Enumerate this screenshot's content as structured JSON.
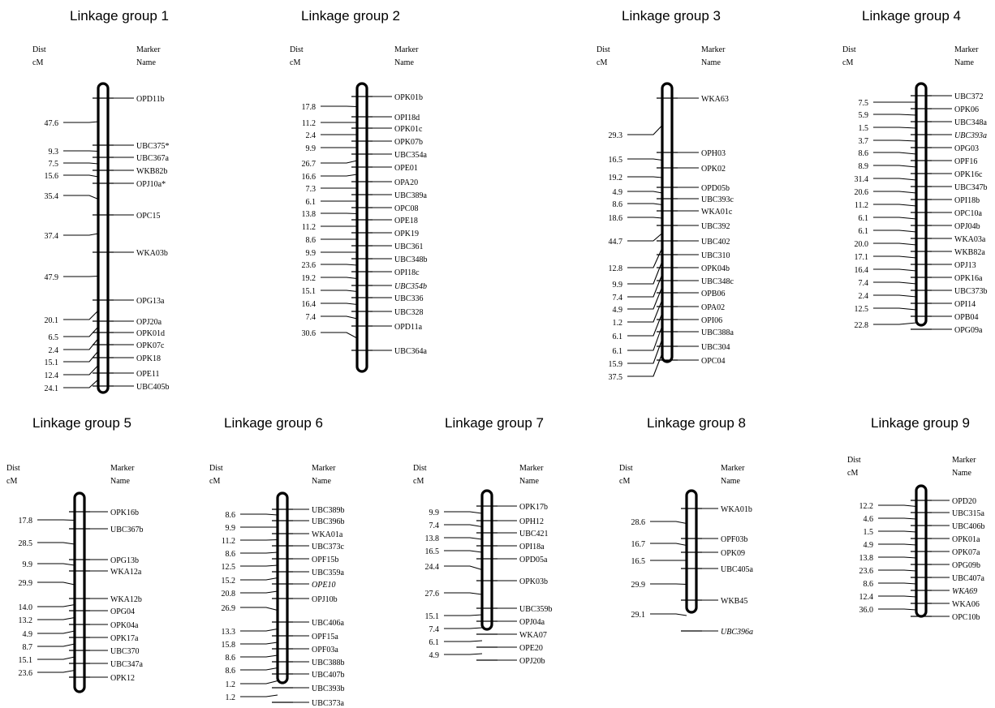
{
  "colors": {
    "ink": "#000000",
    "background": "#ffffff"
  },
  "header": {
    "dist": "Dist",
    "dist_unit": "cM",
    "marker": "Marker",
    "marker_unit": "Name"
  },
  "groups": [
    {
      "title": "Linkage group 1",
      "distances": [
        "47.6",
        "9.3",
        "7.5",
        "15.6",
        "35.4",
        "37.4",
        "47.9",
        "20.1",
        "6.5",
        "2.4",
        "15.1",
        "12.4",
        "24.1"
      ],
      "markers": [
        {
          "name": "OPD11b"
        },
        {
          "name": "UBC375*"
        },
        {
          "name": "UBC367a"
        },
        {
          "name": "WKB82b"
        },
        {
          "name": "OPJ10a*"
        },
        {
          "name": "OPC15"
        },
        {
          "name": "WKA03b"
        },
        {
          "name": "OPG13a"
        },
        {
          "name": "OPJ20a"
        },
        {
          "name": "OPK01d"
        },
        {
          "name": "OPK07c"
        },
        {
          "name": "OPK18"
        },
        {
          "name": "OPE11"
        },
        {
          "name": "UBC405b"
        }
      ]
    },
    {
      "title": "Linkage group 2",
      "distances": [
        "17.8",
        "11.2",
        "2.4",
        "9.9",
        "26.7",
        "16.6",
        "7.3",
        "6.1",
        "13.8",
        "11.2",
        "8.6",
        "9.9",
        "23.6",
        "19.2",
        "15.1",
        "16.4",
        "7.4",
        "30.6"
      ],
      "markers": [
        {
          "name": "OPK01b"
        },
        {
          "name": "OPI18d"
        },
        {
          "name": "OPK01c"
        },
        {
          "name": "OPK07b"
        },
        {
          "name": "UBC354a"
        },
        {
          "name": "OPE01"
        },
        {
          "name": "OPA20"
        },
        {
          "name": "UBC389a"
        },
        {
          "name": "OPC08"
        },
        {
          "name": "OPE18"
        },
        {
          "name": "OPK19"
        },
        {
          "name": "UBC361"
        },
        {
          "name": "UBC348b"
        },
        {
          "name": "OPI18c"
        },
        {
          "name": "UBC354b",
          "italic": true
        },
        {
          "name": "UBC336"
        },
        {
          "name": "UBC328"
        },
        {
          "name": "OPD11a"
        },
        {
          "name": "UBC364a"
        }
      ]
    },
    {
      "title": "Linkage group 3",
      "distances": [
        "29.3",
        "16.5",
        "19.2",
        "4.9",
        "8.6",
        "18.6",
        "44.7",
        "12.8",
        "9.9",
        "7.4",
        "4.9",
        "1.2",
        "6.1",
        "6.1",
        "15.9",
        "37.5"
      ],
      "markers": [
        {
          "name": "WKA63"
        },
        {
          "name": "OPH03"
        },
        {
          "name": "OPK02"
        },
        {
          "name": "OPD05b"
        },
        {
          "name": "UBC393c"
        },
        {
          "name": "WKA01c"
        },
        {
          "name": "UBC392"
        },
        {
          "name": "UBC402"
        },
        {
          "name": "UBC310"
        },
        {
          "name": "OPK04b"
        },
        {
          "name": "UBC348c"
        },
        {
          "name": "OPB06"
        },
        {
          "name": "OPA02"
        },
        {
          "name": "OPI06"
        },
        {
          "name": "UBC388a"
        },
        {
          "name": "UBC304"
        },
        {
          "name": "OPC04"
        }
      ]
    },
    {
      "title": "Linkage group 4",
      "distances": [
        "7.5",
        "5.9",
        "1.5",
        "3.7",
        "8.6",
        "8.9",
        "31.4",
        "20.6",
        "11.2",
        "6.1",
        "6.1",
        "20.0",
        "17.1",
        "16.4",
        "7.4",
        "2.4",
        "12.5",
        "22.8"
      ],
      "markers": [
        {
          "name": "UBC372"
        },
        {
          "name": "OPK06"
        },
        {
          "name": "UBC348a"
        },
        {
          "name": "UBC393a",
          "italic": true
        },
        {
          "name": "OPG03"
        },
        {
          "name": "OPF16"
        },
        {
          "name": "OPK16c"
        },
        {
          "name": "UBC347b"
        },
        {
          "name": "OPI18b"
        },
        {
          "name": "OPC10a"
        },
        {
          "name": "OPJ04b"
        },
        {
          "name": "WKA03a"
        },
        {
          "name": "WKB82a"
        },
        {
          "name": "OPJ13"
        },
        {
          "name": "OPK16a"
        },
        {
          "name": "UBC373b"
        },
        {
          "name": "OPI14"
        },
        {
          "name": "OPB04"
        },
        {
          "name": "OPG09a"
        }
      ]
    },
    {
      "title": "Linkage group 5",
      "distances": [
        "17.8",
        "28.5",
        "9.9",
        "29.9",
        "14.0",
        "13.2",
        "4.9",
        "8.7",
        "15.1",
        "23.6"
      ],
      "markers": [
        {
          "name": "OPK16b"
        },
        {
          "name": "UBC367b"
        },
        {
          "name": "OPG13b"
        },
        {
          "name": "WKA12a"
        },
        {
          "name": "WKA12b"
        },
        {
          "name": "OPG04"
        },
        {
          "name": "OPK04a"
        },
        {
          "name": "OPK17a"
        },
        {
          "name": "UBC370"
        },
        {
          "name": "UBC347a"
        },
        {
          "name": "OPK12"
        }
      ]
    },
    {
      "title": "Linkage group 6",
      "distances": [
        "8.6",
        "9.9",
        "11.2",
        "8.6",
        "12.5",
        "15.2",
        "20.8",
        "26.9",
        "13.3",
        "15.8",
        "8.6",
        "8.6",
        "1.2",
        "1.2"
      ],
      "markers": [
        {
          "name": "UBC389b"
        },
        {
          "name": "UBC396b"
        },
        {
          "name": "WKA01a"
        },
        {
          "name": "UBC373c"
        },
        {
          "name": "OPF15b"
        },
        {
          "name": "UBC359a"
        },
        {
          "name": "OPE10",
          "italic": true
        },
        {
          "name": "OPJ10b"
        },
        {
          "name": "UBC406a"
        },
        {
          "name": "OPF15a"
        },
        {
          "name": "OPF03a"
        },
        {
          "name": "UBC388b"
        },
        {
          "name": "UBC407b"
        },
        {
          "name": "UBC393b"
        },
        {
          "name": "UBC373a"
        }
      ]
    },
    {
      "title": "Linkage group 7",
      "distances": [
        "9.9",
        "7.4",
        "13.8",
        "16.5",
        "24.4",
        "27.6",
        "15.1",
        "7.4",
        "6.1",
        "4.9"
      ],
      "markers": [
        {
          "name": "OPK17b"
        },
        {
          "name": "OPH12"
        },
        {
          "name": "UBC421"
        },
        {
          "name": "OPI18a"
        },
        {
          "name": "OPD05a"
        },
        {
          "name": "OPK03b"
        },
        {
          "name": "UBC359b"
        },
        {
          "name": "OPJ04a"
        },
        {
          "name": "WKA07"
        },
        {
          "name": "OPE20"
        },
        {
          "name": "OPJ20b"
        }
      ]
    },
    {
      "title": "Linkage group 8",
      "distances": [
        "28.6",
        "16.7",
        "16.5",
        "29.9",
        "29.1"
      ],
      "markers": [
        {
          "name": "WKA01b"
        },
        {
          "name": "OPF03b"
        },
        {
          "name": "OPK09"
        },
        {
          "name": "UBC405a"
        },
        {
          "name": "WKB45"
        },
        {
          "name": "UBC396a",
          "italic": true
        }
      ]
    },
    {
      "title": "Linkage group 9",
      "distances": [
        "12.2",
        "4.6",
        "1.5",
        "4.9",
        "13.8",
        "23.6",
        "8.6",
        "12.4",
        "36.0"
      ],
      "markers": [
        {
          "name": "OPD20"
        },
        {
          "name": "UBC315a"
        },
        {
          "name": "UBC406b"
        },
        {
          "name": "OPK01a"
        },
        {
          "name": "OPK07a"
        },
        {
          "name": "OPG09b"
        },
        {
          "name": "UBC407a"
        },
        {
          "name": "WKA69",
          "italic": true
        },
        {
          "name": "WKA06"
        },
        {
          "name": "OPC10b"
        }
      ]
    }
  ]
}
